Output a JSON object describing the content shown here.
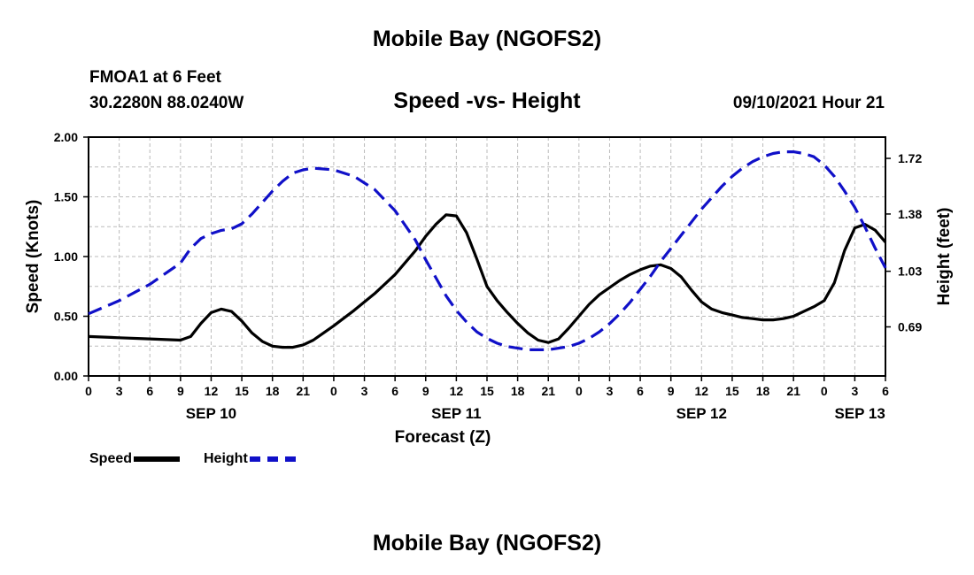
{
  "header": {
    "title": "Mobile Bay (NGOFS2)",
    "station": "FMOA1 at 6 Feet",
    "coordinates": "30.2280N  88.0240W",
    "subtitle": "Speed -vs- Height",
    "timestamp": "09/10/2021 Hour 21"
  },
  "footer": {
    "title": "Mobile Bay (NGOFS2)"
  },
  "legend": {
    "speed_label": "Speed",
    "height_label": "Height",
    "speed_color": "#000000",
    "height_color": "#1010c8"
  },
  "chart_data": {
    "type": "line",
    "title": "Speed -vs- Height",
    "xlabel": "Forecast (Z)",
    "ylabel_left": "Speed (Knots)",
    "ylabel_right": "Height (feet)",
    "x_unit": "hours from SEP 10 00Z",
    "x_range": [
      0,
      78
    ],
    "x_ticks": [
      0,
      3,
      6,
      9,
      12,
      15,
      18,
      21,
      24,
      27,
      30,
      33,
      36,
      39,
      42,
      45,
      48,
      51,
      54,
      57,
      60,
      63,
      66,
      69,
      72,
      75,
      78
    ],
    "x_tick_labels": [
      "0",
      "3",
      "6",
      "9",
      "12",
      "15",
      "18",
      "21",
      "0",
      "3",
      "6",
      "9",
      "12",
      "15",
      "18",
      "21",
      "0",
      "3",
      "6",
      "9",
      "12",
      "15",
      "18",
      "21",
      "0",
      "3",
      "6"
    ],
    "date_labels": [
      {
        "label": "SEP 10",
        "hour": 12
      },
      {
        "label": "SEP 11",
        "hour": 36
      },
      {
        "label": "SEP 12",
        "hour": 60
      },
      {
        "label": "SEP 13",
        "hour": 75.5
      }
    ],
    "y_left": {
      "range": [
        0,
        2.0
      ],
      "ticks": [
        0,
        0.5,
        1.0,
        1.5,
        2.0
      ],
      "tick_labels": [
        "0.00",
        "0.50",
        "1.00",
        "1.50",
        "2.00"
      ]
    },
    "y_right": {
      "range": [
        0.39,
        1.85
      ],
      "ticks": [
        0.69,
        1.03,
        1.38,
        1.72
      ],
      "tick_labels": [
        "0.69",
        "1.03",
        "1.38",
        "1.72"
      ]
    },
    "grid": true,
    "legend_position": "bottom-left",
    "series": [
      {
        "name": "Speed",
        "axis": "left",
        "style": "solid",
        "x": [
          0,
          3,
          6,
          9,
          10,
          11,
          12,
          13,
          14,
          15,
          16,
          17,
          18,
          19,
          20,
          21,
          22,
          24,
          26,
          28,
          30,
          32,
          33,
          34,
          35,
          36,
          37,
          38,
          39,
          40,
          41,
          42,
          43,
          44,
          45,
          46,
          47,
          48,
          49,
          50,
          51,
          52,
          53,
          54,
          55,
          56,
          57,
          58,
          59,
          60,
          61,
          62,
          63,
          64,
          65,
          66,
          67,
          68,
          69,
          70,
          71,
          72,
          73,
          74,
          75,
          76,
          77,
          78
        ],
        "values": [
          0.33,
          0.32,
          0.31,
          0.3,
          0.33,
          0.44,
          0.53,
          0.56,
          0.54,
          0.46,
          0.36,
          0.29,
          0.25,
          0.24,
          0.24,
          0.26,
          0.3,
          0.42,
          0.55,
          0.69,
          0.85,
          1.05,
          1.17,
          1.27,
          1.35,
          1.34,
          1.2,
          0.98,
          0.75,
          0.63,
          0.53,
          0.44,
          0.36,
          0.3,
          0.28,
          0.31,
          0.4,
          0.5,
          0.6,
          0.68,
          0.74,
          0.8,
          0.85,
          0.89,
          0.92,
          0.93,
          0.9,
          0.83,
          0.72,
          0.62,
          0.56,
          0.53,
          0.51,
          0.49,
          0.48,
          0.47,
          0.47,
          0.48,
          0.5,
          0.54,
          0.58,
          0.63,
          0.78,
          1.05,
          1.24,
          1.27,
          1.22,
          1.12
        ]
      },
      {
        "name": "Height",
        "axis": "right",
        "style": "dashed",
        "x": [
          0,
          3,
          6,
          9,
          10,
          11,
          12,
          13,
          14,
          15,
          16,
          17,
          18,
          19,
          20,
          21,
          22,
          24,
          26,
          28,
          30,
          32,
          33,
          34,
          35,
          36,
          37,
          38,
          39,
          40,
          41,
          42,
          43,
          44,
          45,
          46,
          47,
          48,
          49,
          50,
          51,
          52,
          53,
          54,
          55,
          56,
          57,
          58,
          59,
          60,
          61,
          62,
          63,
          64,
          65,
          66,
          67,
          68,
          69,
          70,
          71,
          72,
          73,
          74,
          75,
          76,
          77,
          78
        ],
        "values": [
          0.77,
          0.85,
          0.95,
          1.08,
          1.17,
          1.23,
          1.26,
          1.28,
          1.29,
          1.32,
          1.38,
          1.45,
          1.52,
          1.58,
          1.63,
          1.65,
          1.66,
          1.65,
          1.61,
          1.53,
          1.4,
          1.22,
          1.1,
          0.99,
          0.88,
          0.79,
          0.72,
          0.66,
          0.62,
          0.59,
          0.57,
          0.56,
          0.55,
          0.55,
          0.55,
          0.56,
          0.57,
          0.59,
          0.62,
          0.66,
          0.71,
          0.77,
          0.84,
          0.92,
          1.0,
          1.09,
          1.17,
          1.25,
          1.33,
          1.41,
          1.48,
          1.55,
          1.61,
          1.66,
          1.7,
          1.73,
          1.75,
          1.76,
          1.76,
          1.75,
          1.73,
          1.68,
          1.61,
          1.52,
          1.42,
          1.3,
          1.17,
          1.05
        ]
      }
    ]
  }
}
